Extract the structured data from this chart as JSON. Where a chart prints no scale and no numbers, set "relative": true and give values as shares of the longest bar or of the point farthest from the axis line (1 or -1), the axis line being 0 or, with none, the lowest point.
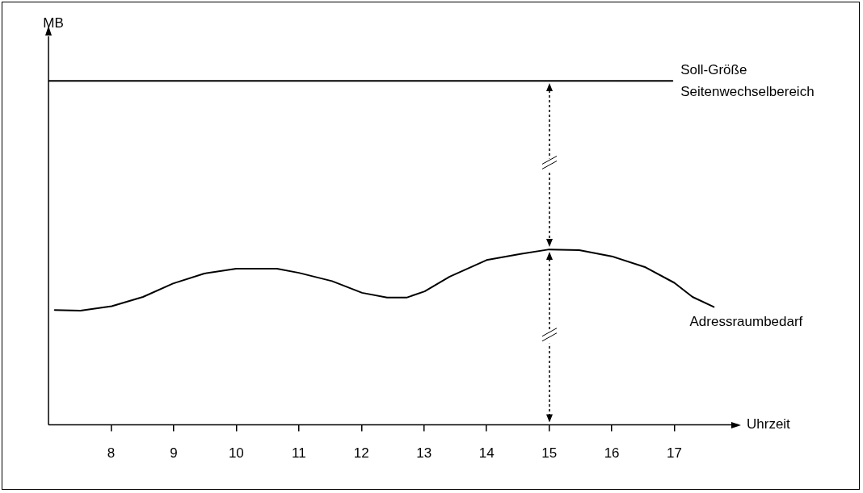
{
  "chart_data": {
    "type": "line",
    "xlabel": "Uhrzeit",
    "ylabel": "MB",
    "relative": true,
    "xlim": [
      7,
      18
    ],
    "xticks": [
      8,
      9,
      10,
      11,
      12,
      13,
      14,
      15,
      16,
      17
    ],
    "tick_labels": "x",
    "grid": false,
    "legend": false,
    "marker": "none",
    "line_style": "solid",
    "series": [
      {
        "name": "Soll-Größe Seitenwechselbereich",
        "type": "line",
        "color": "#000000",
        "x": [
          7,
          16.97
        ],
        "values": [
          1,
          1
        ]
      },
      {
        "name": "Adressraumbedarf",
        "type": "line",
        "color": "#000000",
        "x": [
          7.1,
          7.51,
          8.01,
          8.51,
          8.99,
          9.49,
          10.0,
          10.65,
          11.0,
          11.53,
          12.01,
          12.41,
          12.72,
          13.01,
          13.41,
          14.0,
          14.54,
          15.0,
          15.48,
          16.0,
          16.54,
          17.0,
          17.29,
          17.63
        ],
        "values": [
          0.334,
          0.332,
          0.345,
          0.372,
          0.411,
          0.44,
          0.454,
          0.454,
          0.442,
          0.418,
          0.384,
          0.37,
          0.37,
          0.388,
          0.431,
          0.479,
          0.497,
          0.51,
          0.508,
          0.49,
          0.458,
          0.413,
          0.372,
          0.343
        ]
      }
    ]
  }
}
